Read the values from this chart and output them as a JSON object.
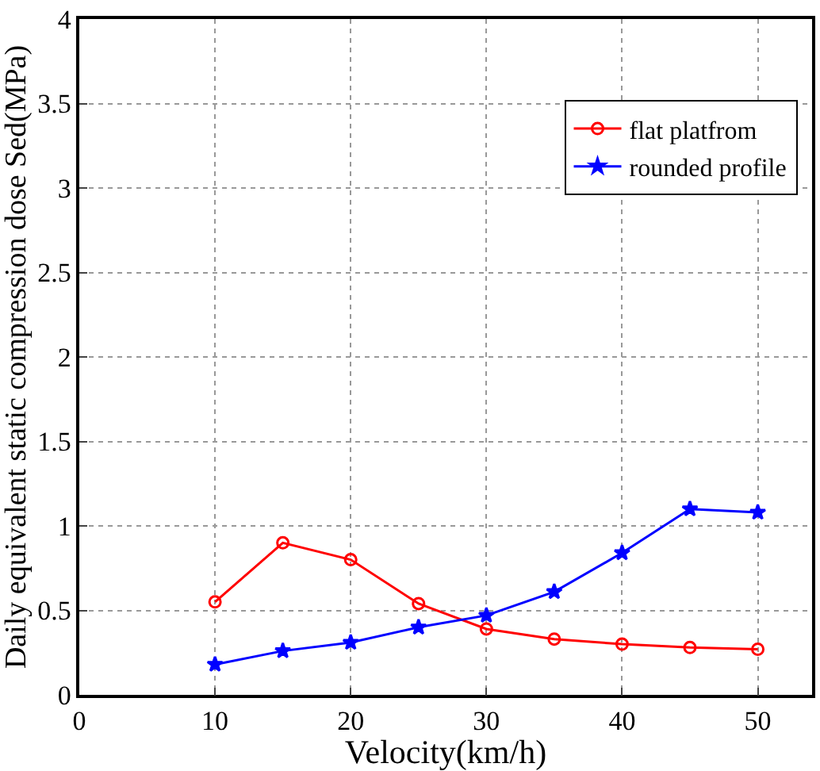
{
  "chart_data": {
    "type": "line",
    "xlabel": "Velocity(km/h)",
    "ylabel": "Daily equivalent static compression dose Sed(MPa)",
    "x": [
      10,
      15,
      20,
      25,
      30,
      35,
      40,
      45,
      50
    ],
    "series": [
      {
        "name": "flat platfrom",
        "color": "#ff0000",
        "marker": "circle",
        "values": [
          0.55,
          0.9,
          0.8,
          0.54,
          0.39,
          0.33,
          0.3,
          0.28,
          0.27
        ]
      },
      {
        "name": "rounded profile",
        "color": "#0000ff",
        "marker": "star",
        "values": [
          0.18,
          0.26,
          0.31,
          0.4,
          0.47,
          0.61,
          0.84,
          1.1,
          1.08
        ]
      }
    ],
    "xlim": [
      0,
      54
    ],
    "xticks": [
      0,
      10,
      20,
      30,
      40,
      50
    ],
    "ylim": [
      0,
      4
    ],
    "yticks": [
      0,
      0.5,
      1,
      1.5,
      2,
      2.5,
      3,
      3.5,
      4
    ],
    "grid": true,
    "legend": "top right",
    "line_style": "solid"
  }
}
